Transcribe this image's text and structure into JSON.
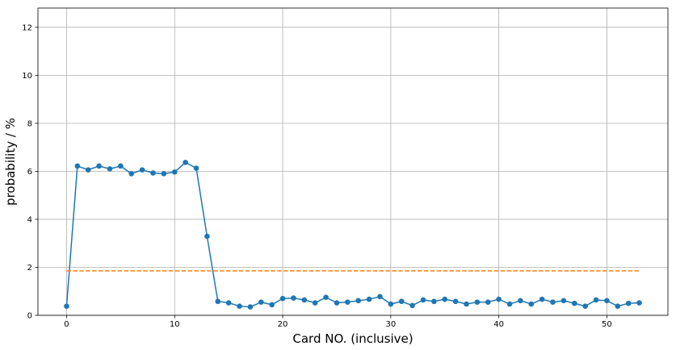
{
  "chart_data": {
    "type": "line",
    "title": "",
    "xlabel": "Card NO. (inclusive)",
    "ylabel": "probability / %",
    "xlim": [
      -2.65,
      55.65
    ],
    "ylim": [
      0,
      12.8
    ],
    "xticks": [
      0,
      10,
      20,
      30,
      40,
      50
    ],
    "yticks": [
      0,
      2,
      4,
      6,
      8,
      10,
      12
    ],
    "grid": true,
    "legend": "none",
    "series": [
      {
        "style": "solid-marker",
        "color": "#1f77b4",
        "x": [
          0,
          1,
          2,
          3,
          4,
          5,
          6,
          7,
          8,
          9,
          10,
          11,
          12,
          13,
          14,
          15,
          16,
          17,
          18,
          19,
          20,
          21,
          22,
          23,
          24,
          25,
          26,
          27,
          28,
          29,
          30,
          31,
          32,
          33,
          34,
          35,
          36,
          37,
          38,
          39,
          40,
          41,
          42,
          43,
          44,
          45,
          46,
          47,
          48,
          49,
          50,
          51,
          52,
          53
        ],
        "values": [
          0.38,
          6.22,
          6.06,
          6.22,
          6.1,
          6.22,
          5.9,
          6.06,
          5.93,
          5.9,
          5.97,
          6.37,
          6.13,
          3.29,
          0.58,
          0.52,
          0.38,
          0.35,
          0.55,
          0.44,
          0.7,
          0.72,
          0.64,
          0.52,
          0.75,
          0.52,
          0.55,
          0.61,
          0.67,
          0.78,
          0.47,
          0.58,
          0.41,
          0.64,
          0.58,
          0.67,
          0.58,
          0.47,
          0.55,
          0.55,
          0.67,
          0.47,
          0.61,
          0.47,
          0.67,
          0.55,
          0.61,
          0.5,
          0.38,
          0.64,
          0.61,
          0.38,
          0.5,
          0.52
        ]
      },
      {
        "style": "dashed",
        "color": "#ff7f0e",
        "x": [
          0,
          53
        ],
        "values": [
          1.85,
          1.85
        ]
      }
    ]
  }
}
